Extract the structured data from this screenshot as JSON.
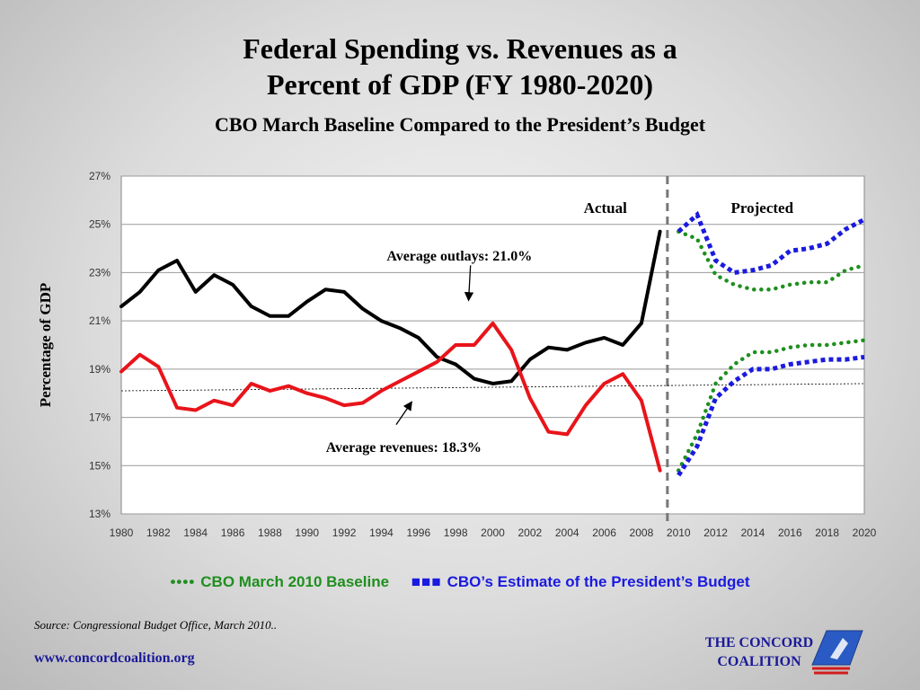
{
  "title_line1": "Federal Spending vs. Revenues as a",
  "title_line2": "Percent of GDP (FY 1980-2020)",
  "subtitle": "CBO March Baseline Compared to the President’s Budget",
  "chart_data": {
    "type": "line",
    "title": "Federal Spending vs. Revenues as a Percent of GDP (FY 1980-2020)",
    "ylabel": "Percentage of GDP",
    "ylim": [
      13,
      27
    ],
    "xlim": [
      1980,
      2020
    ],
    "x_ticks": [
      "1980",
      "1982",
      "1984",
      "1986",
      "1988",
      "1990",
      "1992",
      "1994",
      "1996",
      "1998",
      "2000",
      "2002",
      "2004",
      "2006",
      "2008",
      "2010",
      "2012",
      "2014",
      "2016",
      "2018",
      "2020"
    ],
    "y_ticks": [
      "13%",
      "15%",
      "17%",
      "19%",
      "21%",
      "23%",
      "25%",
      "27%"
    ],
    "divider_year": 2009.4,
    "region_labels": {
      "actual": "Actual",
      "projected": "Projected"
    },
    "series": [
      {
        "key": "outlays_actual",
        "color": "#000000",
        "style": "solid",
        "x": [
          1980,
          1981,
          1982,
          1983,
          1984,
          1985,
          1986,
          1987,
          1988,
          1989,
          1990,
          1991,
          1992,
          1993,
          1994,
          1995,
          1996,
          1997,
          1998,
          1999,
          2000,
          2001,
          2002,
          2003,
          2004,
          2005,
          2006,
          2007,
          2008,
          2009
        ],
        "values": [
          21.6,
          22.2,
          23.1,
          23.5,
          22.2,
          22.9,
          22.5,
          21.6,
          21.2,
          21.2,
          21.8,
          22.3,
          22.2,
          21.5,
          21.0,
          20.7,
          20.3,
          19.5,
          19.2,
          18.6,
          18.4,
          18.5,
          19.4,
          19.9,
          19.8,
          20.1,
          20.3,
          20.0,
          20.9,
          24.7
        ]
      },
      {
        "key": "revenues_actual",
        "color": "#e8141a",
        "style": "solid",
        "x": [
          1980,
          1981,
          1982,
          1983,
          1984,
          1985,
          1986,
          1987,
          1988,
          1989,
          1990,
          1991,
          1992,
          1993,
          1994,
          1995,
          1996,
          1997,
          1998,
          1999,
          2000,
          2001,
          2002,
          2003,
          2004,
          2005,
          2006,
          2007,
          2008,
          2009
        ],
        "values": [
          18.9,
          19.6,
          19.1,
          17.4,
          17.3,
          17.7,
          17.5,
          18.4,
          18.1,
          18.3,
          18.0,
          17.8,
          17.5,
          17.6,
          18.1,
          18.5,
          18.9,
          19.3,
          20.0,
          20.0,
          20.9,
          19.8,
          17.8,
          16.4,
          16.3,
          17.5,
          18.4,
          18.8,
          17.7,
          14.8
        ]
      },
      {
        "key": "outlays_cbo",
        "color": "#1f8f1f",
        "style": "dotted",
        "x": [
          2010,
          2011,
          2012,
          2013,
          2014,
          2015,
          2016,
          2017,
          2018,
          2019,
          2020
        ],
        "values": [
          24.7,
          24.4,
          22.9,
          22.5,
          22.3,
          22.3,
          22.5,
          22.6,
          22.6,
          23.1,
          23.3
        ]
      },
      {
        "key": "revenues_cbo",
        "color": "#1f8f1f",
        "style": "dotted",
        "x": [
          2010,
          2011,
          2012,
          2013,
          2014,
          2015,
          2016,
          2017,
          2018,
          2019,
          2020
        ],
        "values": [
          14.8,
          16.3,
          18.4,
          19.2,
          19.7,
          19.7,
          19.9,
          20.0,
          20.0,
          20.1,
          20.2
        ]
      },
      {
        "key": "outlays_president",
        "color": "#1a1ae0",
        "style": "square-dotted",
        "x": [
          2010,
          2011,
          2012,
          2013,
          2014,
          2015,
          2016,
          2017,
          2018,
          2019,
          2020
        ],
        "values": [
          24.7,
          25.4,
          23.5,
          23.0,
          23.1,
          23.3,
          23.9,
          24.0,
          24.2,
          24.8,
          25.2
        ]
      },
      {
        "key": "revenues_president",
        "color": "#1a1ae0",
        "style": "square-dotted",
        "x": [
          2010,
          2011,
          2012,
          2013,
          2014,
          2015,
          2016,
          2017,
          2018,
          2019,
          2020
        ],
        "values": [
          14.6,
          15.8,
          17.8,
          18.5,
          19.0,
          19.0,
          19.2,
          19.3,
          19.4,
          19.4,
          19.5
        ]
      }
    ],
    "reference_line": {
      "x": [
        1980,
        2020
      ],
      "values": [
        18.1,
        18.4
      ],
      "style": "dotted-thin",
      "color": "#000000"
    },
    "annotations": [
      {
        "key": "outlays",
        "text": "Average outlays: 21.0%",
        "arrow_from": [
          1998.8,
          23.3
        ],
        "arrow_to": [
          1998.7,
          21.9
        ]
      },
      {
        "key": "revenues",
        "text": "Average revenues: 18.3%",
        "arrow_from": [
          1994.8,
          16.7
        ],
        "arrow_to": [
          1995.6,
          17.6
        ]
      }
    ],
    "legend": [
      {
        "marker": "••••",
        "label": "CBO March 2010 Baseline",
        "color": "#1f8f1f"
      },
      {
        "marker": "■■■",
        "label": "CBO’s Estimate of the President’s Budget",
        "color": "#1a1ae0"
      }
    ],
    "grid": "horizontal"
  },
  "footer": {
    "source": "Source: Congressional Budget Office, March 2010..",
    "website": "www.concordcoalition.org",
    "logo_line1": "THE CONCORD",
    "logo_line2": "COALITION"
  }
}
